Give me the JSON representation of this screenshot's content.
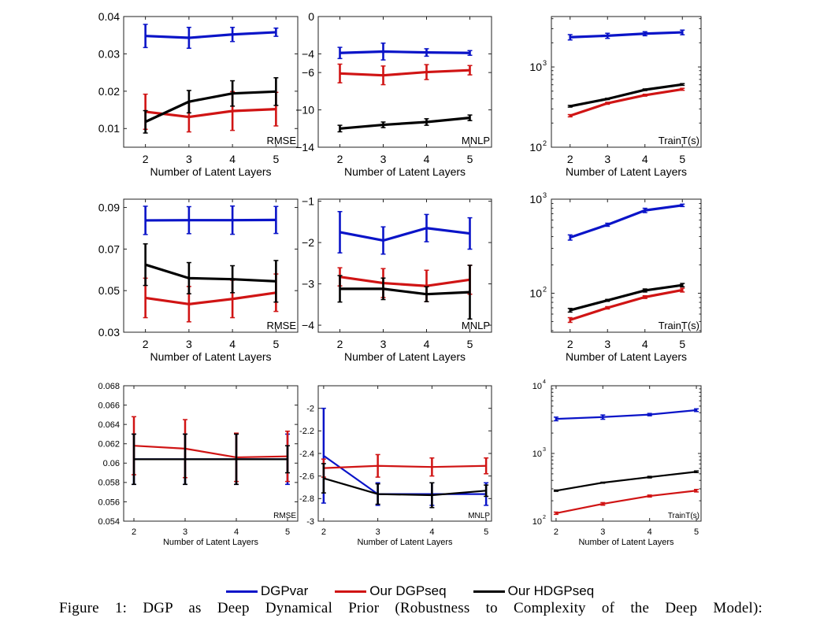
{
  "legend": [
    {
      "label": "DGPvar",
      "color": "#0a14c8"
    },
    {
      "label": "Our DGPseq",
      "color": "#d01414"
    },
    {
      "label": "Our HDGPseq",
      "color": "#000000"
    }
  ],
  "caption": "Figure 1: DGP as Deep Dynamical Prior (Robustness to Complexity of the Deep Model):",
  "chart_data": [
    {
      "type": "line",
      "xlabel": "Number of Latent Layers",
      "corner_label": "RMSE",
      "x": [
        2,
        3,
        4,
        5
      ],
      "xlim": [
        1.5,
        5.5
      ],
      "ylim": [
        0.005,
        0.04
      ],
      "ylog": false,
      "yticks": [
        0.01,
        0.02,
        0.03,
        0.04
      ],
      "ytick_labels": [
        "0.01",
        "0.02",
        "0.03",
        "0.04"
      ],
      "series": [
        {
          "name": "DGPvar",
          "values": [
            0.0348,
            0.0343,
            0.0352,
            0.0358
          ],
          "errors": [
            0.0031,
            0.0028,
            0.0019,
            0.0011
          ]
        },
        {
          "name": "Our DGPseq",
          "values": [
            0.0145,
            0.0131,
            0.0147,
            0.0152
          ],
          "errors": [
            0.0047,
            0.004,
            0.0052,
            0.0045
          ]
        },
        {
          "name": "Our HDGPseq",
          "values": [
            0.0118,
            0.0172,
            0.0194,
            0.0199
          ],
          "errors": [
            0.003,
            0.003,
            0.0034,
            0.0037
          ]
        }
      ]
    },
    {
      "type": "line",
      "xlabel": "Number of Latent Layers",
      "corner_label": "MNLP",
      "x": [
        2,
        3,
        4,
        5
      ],
      "xlim": [
        1.5,
        5.5
      ],
      "ylim": [
        -14,
        0
      ],
      "ylog": false,
      "yticks": [
        -14,
        -10,
        -6,
        -4,
        0
      ],
      "ytick_labels": [
        "−14",
        "−10",
        "−6",
        "−4",
        "0"
      ],
      "series": [
        {
          "name": "DGPvar",
          "values": [
            -3.9,
            -3.75,
            -3.85,
            -3.9
          ],
          "errors": [
            0.6,
            0.9,
            0.4,
            0.25
          ]
        },
        {
          "name": "Our DGPseq",
          "values": [
            -6.1,
            -6.3,
            -5.95,
            -5.75
          ],
          "errors": [
            1.0,
            1.0,
            0.8,
            0.5
          ]
        },
        {
          "name": "Our HDGPseq",
          "values": [
            -12.0,
            -11.6,
            -11.3,
            -10.85
          ],
          "errors": [
            0.35,
            0.3,
            0.35,
            0.3
          ]
        }
      ]
    },
    {
      "type": "line",
      "xlabel": "Number of Latent Layers",
      "corner_label": "TrainT(s)",
      "x": [
        2,
        3,
        4,
        5
      ],
      "xlim": [
        1.5,
        5.5
      ],
      "ylim": [
        100,
        4250
      ],
      "ylog": true,
      "yticks": [
        100,
        1000
      ],
      "ytick_labels": [
        "10^2",
        "10^3"
      ],
      "series": [
        {
          "name": "DGPvar",
          "values": [
            2350,
            2450,
            2600,
            2700
          ],
          "errors": [
            180,
            180,
            150,
            180
          ]
        },
        {
          "name": "Our DGPseq",
          "values": [
            247,
            353,
            445,
            527
          ],
          "errors": [
            8,
            10,
            12,
            15
          ]
        },
        {
          "name": "Our HDGPseq",
          "values": [
            324,
            400,
            520,
            605
          ],
          "errors": [
            8,
            8,
            12,
            15
          ]
        }
      ]
    },
    {
      "type": "line",
      "xlabel": "Number of Latent Layers",
      "corner_label": "RMSE",
      "x": [
        2,
        3,
        4,
        5
      ],
      "xlim": [
        1.5,
        5.5
      ],
      "ylim": [
        0.03,
        0.094
      ],
      "ylog": false,
      "yticks": [
        0.03,
        0.05,
        0.07,
        0.09
      ],
      "ytick_labels": [
        "0.03",
        "0.05",
        "0.07",
        "0.09"
      ],
      "series": [
        {
          "name": "DGPvar",
          "values": [
            0.0838,
            0.0839,
            0.0839,
            0.084
          ],
          "errors": [
            0.0068,
            0.0065,
            0.0068,
            0.0065
          ]
        },
        {
          "name": "Our DGPseq",
          "values": [
            0.0465,
            0.0435,
            0.046,
            0.049
          ],
          "errors": [
            0.0095,
            0.0085,
            0.009,
            0.009
          ]
        },
        {
          "name": "Our HDGPseq",
          "values": [
            0.0625,
            0.056,
            0.0555,
            0.0545
          ],
          "errors": [
            0.01,
            0.0075,
            0.0065,
            0.01
          ]
        }
      ]
    },
    {
      "type": "line",
      "xlabel": "Number of Latent Layers",
      "corner_label": "MNLP",
      "x": [
        2,
        3,
        4,
        5
      ],
      "xlim": [
        1.5,
        5.5
      ],
      "ylim": [
        -4.17,
        -0.95
      ],
      "ylog": false,
      "yticks": [
        -4,
        -3,
        -2,
        -1
      ],
      "ytick_labels": [
        "−4",
        "−3",
        "−2",
        "−1"
      ],
      "series": [
        {
          "name": "DGPvar",
          "values": [
            -1.75,
            -1.95,
            -1.65,
            -1.78
          ],
          "errors": [
            0.5,
            0.33,
            0.33,
            0.38
          ]
        },
        {
          "name": "Our DGPseq",
          "values": [
            -2.83,
            -2.98,
            -3.05,
            -2.9
          ],
          "errors": [
            0.22,
            0.35,
            0.38,
            0.35
          ]
        },
        {
          "name": "Our HDGPseq",
          "values": [
            -3.12,
            -3.12,
            -3.25,
            -3.2
          ],
          "errors": [
            0.32,
            0.26,
            0.18,
            0.65
          ]
        }
      ]
    },
    {
      "type": "line",
      "xlabel": "Number of Latent Layers",
      "corner_label": "TrainT(s)",
      "x": [
        2,
        3,
        4,
        5
      ],
      "xlim": [
        1.5,
        5.5
      ],
      "ylim": [
        38.5,
        1000
      ],
      "ylog": true,
      "yticks": [
        100,
        1000
      ],
      "ytick_labels": [
        "10^2",
        "10^3"
      ],
      "series": [
        {
          "name": "DGPvar",
          "values": [
            392,
            535,
            760,
            860
          ],
          "errors": [
            25,
            20,
            40,
            25
          ]
        },
        {
          "name": "Our DGPseq",
          "values": [
            52,
            70,
            91,
            108
          ],
          "errors": [
            3,
            2,
            3,
            5
          ]
        },
        {
          "name": "Our HDGPseq",
          "values": [
            66,
            84,
            107,
            122
          ],
          "errors": [
            3,
            2,
            4,
            5
          ]
        }
      ]
    },
    {
      "type": "line",
      "xlabel": "Number of Latent Layers",
      "corner_label": "RMSE",
      "x": [
        2,
        3,
        4,
        5
      ],
      "xlim": [
        1.8,
        5.2
      ],
      "ylim": [
        0.054,
        0.068
      ],
      "ylog": false,
      "yticks": [
        0.054,
        0.056,
        0.058,
        0.06,
        0.062,
        0.064,
        0.066,
        0.068
      ],
      "ytick_labels": [
        "0.054",
        "0.056",
        "0.058",
        "0.06",
        "0.062",
        "0.064",
        "0.066",
        "0.068"
      ],
      "series": [
        {
          "name": "DGPvar",
          "values": [
            0.0604,
            0.0604,
            0.0604,
            0.0604
          ],
          "errors": [
            0.0026,
            0.0026,
            0.0026,
            0.0026
          ]
        },
        {
          "name": "Our DGPseq",
          "values": [
            0.0618,
            0.0615,
            0.0606,
            0.0607
          ],
          "errors": [
            0.003,
            0.003,
            0.0025,
            0.0026
          ]
        },
        {
          "name": "Our HDGPseq",
          "values": [
            0.0604,
            0.0604,
            0.0604,
            0.0604
          ],
          "errors": [
            0.0026,
            0.0026,
            0.0026,
            0.0014
          ]
        }
      ]
    },
    {
      "type": "line",
      "xlabel": "Number of Latent Layers",
      "corner_label": "MNLP",
      "x": [
        2,
        3,
        4,
        5
      ],
      "xlim": [
        1.9,
        5.1
      ],
      "ylim": [
        -3,
        -1.8
      ],
      "ylog": false,
      "yticks": [
        -3,
        -2.8,
        -2.6,
        -2.4,
        -2.2,
        -2
      ],
      "ytick_labels": [
        "-3",
        "-2.8",
        "-2.6",
        "-2.4",
        "-2.2",
        "-2"
      ],
      "series": [
        {
          "name": "DGPvar",
          "values": [
            -2.42,
            -2.76,
            -2.76,
            -2.76
          ],
          "errors": [
            0.42,
            0.1,
            0.1,
            0.1
          ]
        },
        {
          "name": "Our DGPseq",
          "values": [
            -2.53,
            -2.51,
            -2.52,
            -2.51
          ],
          "errors": [
            0.08,
            0.1,
            0.08,
            0.07
          ]
        },
        {
          "name": "Our HDGPseq",
          "values": [
            -2.62,
            -2.76,
            -2.77,
            -2.73
          ],
          "errors": [
            0.13,
            0.09,
            0.11,
            0.05
          ]
        }
      ]
    },
    {
      "type": "line",
      "xlabel": "Number of Latent Layers",
      "corner_label": "TrainT(s)",
      "x": [
        2,
        3,
        4,
        5
      ],
      "xlim": [
        1.9,
        5.1
      ],
      "ylim": [
        100,
        10000
      ],
      "ylog": true,
      "yticks": [
        100,
        1000,
        10000
      ],
      "ytick_labels": [
        "10^2",
        "10^3",
        "10^4"
      ],
      "series": [
        {
          "name": "DGPvar",
          "values": [
            3240,
            3450,
            3750,
            4360
          ],
          "errors": [
            200,
            250,
            150,
            200
          ]
        },
        {
          "name": "Our DGPseq",
          "values": [
            131,
            180,
            235,
            282
          ],
          "errors": [
            5,
            8,
            8,
            12
          ]
        },
        {
          "name": "Our HDGPseq",
          "values": [
            282,
            370,
            447,
            537
          ],
          "errors": [
            6,
            6,
            12,
            15
          ]
        }
      ]
    }
  ]
}
